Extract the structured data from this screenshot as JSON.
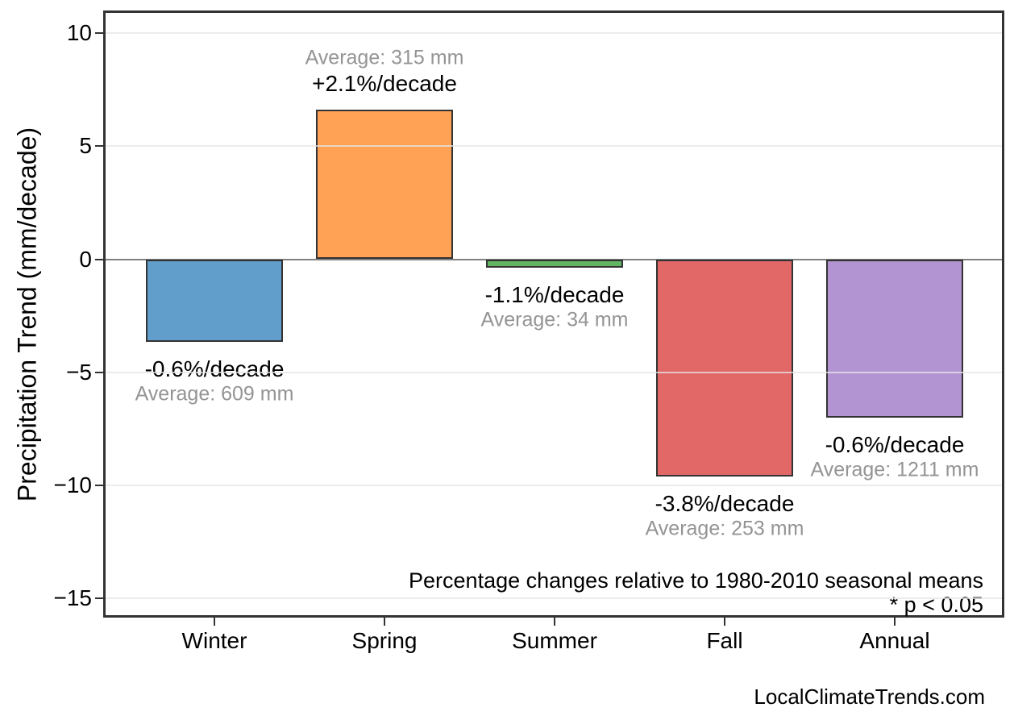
{
  "chart_data": {
    "type": "bar",
    "title": "",
    "xlabel": "",
    "ylabel": "Precipitation Trend (mm/decade)",
    "categories": [
      "Winter",
      "Spring",
      "Summer",
      "Fall",
      "Annual"
    ],
    "values_mm_per_decade": [
      -3.65,
      6.6,
      -0.37,
      -9.6,
      -7.0
    ],
    "percent_per_decade": [
      -0.6,
      2.1,
      -1.1,
      -3.8,
      -0.6
    ],
    "averages_mm": [
      609,
      315,
      34,
      253,
      1211
    ],
    "trend_labels": [
      "-0.6%/decade",
      "+2.1%/decade",
      "-1.1%/decade",
      "-3.8%/decade",
      "-0.6%/decade"
    ],
    "average_labels": [
      "Average: 609 mm",
      "Average: 315 mm",
      "Average: 34 mm",
      "Average: 253 mm",
      "Average: 1211 mm"
    ],
    "bar_colors": [
      "#619ECC",
      "#FFA256",
      "#62B562",
      "#E26868",
      "#B294D2"
    ],
    "yticks": [
      10,
      5,
      0,
      -5,
      -10,
      -15
    ],
    "ytick_labels": [
      "10",
      "5",
      "0",
      "−5",
      "−10",
      "−15"
    ],
    "ylim": [
      -15.8,
      11.0
    ],
    "grid": true,
    "legend": "none",
    "annotations": {
      "line1": "Percentage changes relative to 1980-2010 seasonal means",
      "line2": "* p < 0.05"
    },
    "watermark": "LocalClimateTrends.com",
    "colors": {
      "bar_edge": "#333333",
      "axis_border": "#333333",
      "zero_line": "#808080",
      "gridline": "#ECECEC",
      "trend_label": "#000000",
      "average_label": "#949494"
    }
  }
}
